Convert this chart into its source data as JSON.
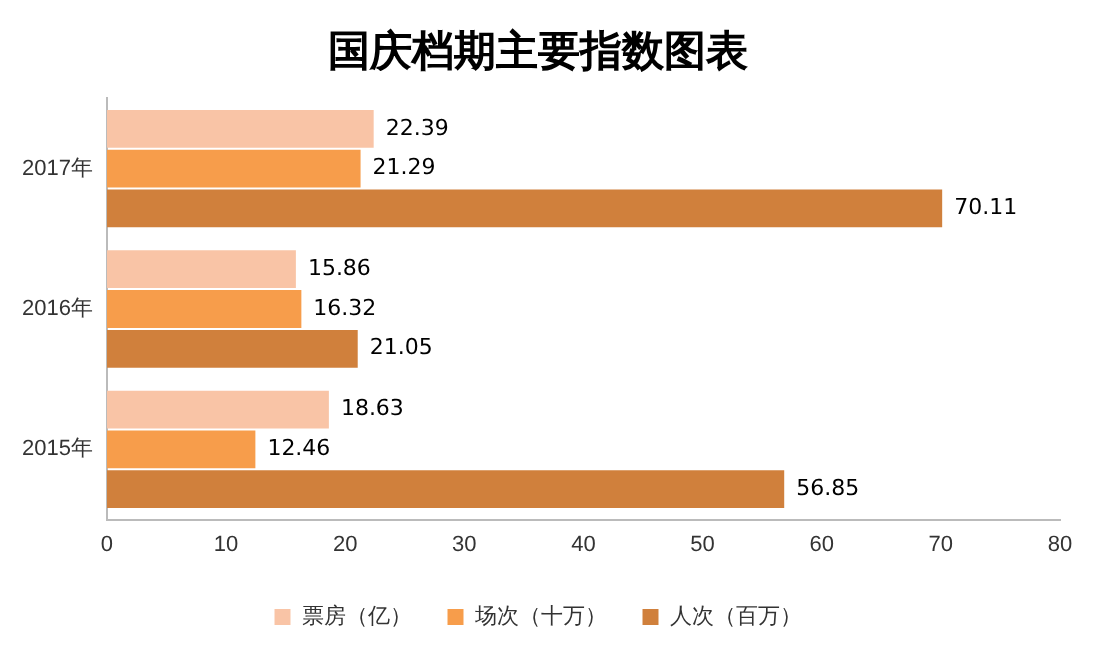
{
  "chart_data": {
    "type": "bar",
    "title": "国庆档期主要指数图表",
    "orientation": "horizontal",
    "categories": [
      "2017年",
      "2016年",
      "2015年"
    ],
    "series": [
      {
        "name": "票房（亿）",
        "color": "#f9c4a6",
        "values": [
          22.39,
          15.86,
          18.63
        ]
      },
      {
        "name": "场次（十万）",
        "color": "#f79d4b",
        "values": [
          21.29,
          16.32,
          12.46
        ]
      },
      {
        "name": "人次（百万）",
        "color": "#d0803c",
        "values": [
          70.11,
          21.05,
          56.85
        ]
      }
    ],
    "xlim": [
      0,
      80
    ],
    "xticks": [
      0,
      10,
      20,
      30,
      40,
      50,
      60,
      70,
      80
    ],
    "data_labels": true,
    "legend": "bottom",
    "grid": false
  }
}
